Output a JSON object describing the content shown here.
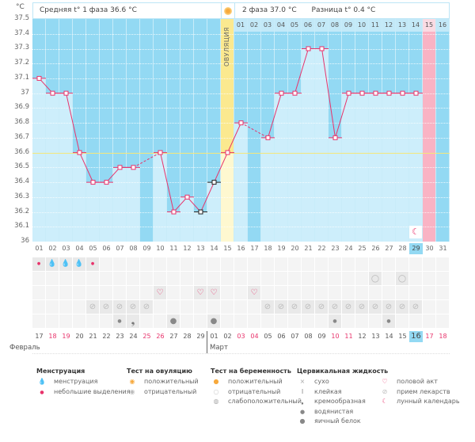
{
  "header": {
    "unit": "°C",
    "phase1_label": "Средняя t° 1 фаза 36.6 °C",
    "phase2_label": "2 фаза 37.0 °C",
    "diff_label": "Разница t° 0.4 °C",
    "ovulation_label": "ОВУЛЯЦИЯ",
    "phase2_days": [
      "01",
      "02",
      "03",
      "04",
      "05",
      "06",
      "07",
      "08",
      "09",
      "10",
      "11",
      "12",
      "13",
      "14",
      "15",
      "16"
    ]
  },
  "colors": {
    "sky": "#93d9f3",
    "bar": "#cdeefb",
    "ovulation": "#fbe98f",
    "period": "#f9b3c4",
    "line": "#e8336b",
    "cover": "#f5e77a"
  },
  "chart_data": {
    "type": "line",
    "title": "",
    "xlabel": "",
    "ylabel": "°C",
    "ylim": [
      36,
      37.5
    ],
    "y_ticks": [
      "36",
      "36.1",
      "36.2",
      "36.3",
      "36.4",
      "36.5",
      "36.6",
      "36.7",
      "36.8",
      "36.9",
      "37",
      "37.1",
      "37.2",
      "37.3",
      "37.4",
      "37.5"
    ],
    "x": [
      "01",
      "02",
      "03",
      "04",
      "05",
      "06",
      "07",
      "08",
      "09",
      "10",
      "11",
      "12",
      "13",
      "14",
      "15",
      "16",
      "17",
      "18",
      "19",
      "20",
      "21",
      "22",
      "23",
      "24",
      "25",
      "26",
      "27",
      "28",
      "29",
      "30",
      "31"
    ],
    "temps": [
      37.1,
      37.0,
      37.0,
      36.6,
      36.4,
      36.4,
      36.5,
      36.5,
      null,
      36.6,
      36.2,
      36.3,
      36.2,
      36.4,
      36.6,
      36.8,
      null,
      36.7,
      37.0,
      37.0,
      37.3,
      37.3,
      36.7,
      37.0,
      37.0,
      37.0,
      37.0,
      37.0,
      37.0,
      null,
      null
    ],
    "excluded_days": [
      13,
      14
    ],
    "cover_line": 36.6,
    "ovulation_day": 15,
    "expected_period_day": 30,
    "current_day": 29,
    "moon_day": 29
  },
  "rows": {
    "menstruation": {
      "1": "small",
      "2": "heavy",
      "3": "heavy",
      "4": "heavy",
      "5": "small"
    },
    "pregnancy_test": {
      "26": "negative",
      "28": "negative"
    },
    "intercourse": [
      10,
      13,
      14,
      17
    ],
    "medication": [
      5,
      6,
      7,
      8,
      9,
      18,
      19,
      20,
      21,
      22,
      23,
      24,
      25,
      26,
      27,
      28,
      29
    ],
    "cervical": {
      "7": "watery",
      "8": "creamy",
      "11": "eggwhite",
      "14": "eggwhite",
      "23": "watery",
      "27": "watery"
    }
  },
  "dates": [
    "17",
    "18",
    "19",
    "20",
    "21",
    "22",
    "23",
    "24",
    "25",
    "26",
    "27",
    "28",
    "29",
    "01",
    "02",
    "03",
    "04",
    "05",
    "06",
    "07",
    "08",
    "09",
    "10",
    "11",
    "12",
    "13",
    "14",
    "15",
    "16",
    "17",
    "18"
  ],
  "red_dates": [
    1,
    2,
    8,
    9,
    15,
    16,
    22,
    23,
    29,
    30
  ],
  "today_index": 28,
  "months": {
    "feb": "Февраль",
    "mar": "Март"
  },
  "legend": {
    "menstruation": {
      "title": "Менструация",
      "items": [
        "менструация",
        "небольшие выделения"
      ]
    },
    "ovulation_test": {
      "title": "Тест на овуляцию",
      "items": [
        "положительный",
        "отрицательный"
      ]
    },
    "pregnancy_test": {
      "title": "Тест на беременность",
      "items": [
        "положительный",
        "отрицательный",
        "слабоположительный"
      ]
    },
    "cervical": {
      "title": "Цервикальная жидкость",
      "items": [
        "сухо",
        "клейкая",
        "кремообразная",
        "водянистая",
        "яичный белок"
      ]
    },
    "other": {
      "items": [
        "половой акт",
        "прием лекарств",
        "лунный календарь"
      ]
    }
  }
}
